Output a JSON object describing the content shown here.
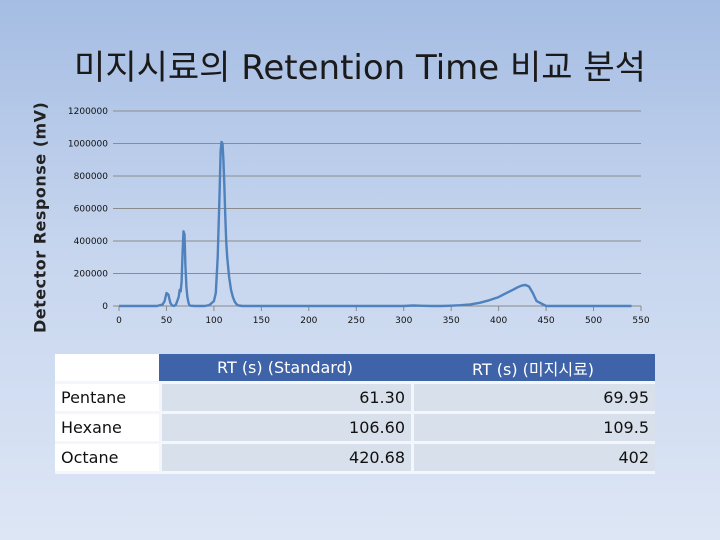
{
  "title": "미지시료의 Retention Time 비교 분석",
  "chart_data": {
    "type": "line",
    "title": "미지시료의 Retention Time 비교 분석",
    "xlabel": "",
    "ylabel": "Detector Response (mV)",
    "xlim": [
      0,
      550
    ],
    "ylim": [
      0,
      1200000
    ],
    "x_ticks": [
      0,
      50,
      100,
      150,
      200,
      250,
      300,
      350,
      400,
      450,
      500,
      550
    ],
    "y_ticks": [
      0,
      200000,
      400000,
      600000,
      800000,
      1000000,
      1200000
    ],
    "grid": "horizontal",
    "line_color": "#4f81bd",
    "series": [
      {
        "x": [
          0,
          20,
          40,
          46,
          48,
          50,
          52,
          54,
          56,
          58,
          60,
          62,
          63,
          64,
          65,
          66,
          67,
          68,
          69,
          70,
          71,
          72,
          73,
          74,
          75,
          80,
          90,
          95,
          100,
          102,
          104,
          106,
          107,
          108,
          109,
          110,
          111,
          112,
          113,
          114,
          116,
          118,
          120,
          122,
          124,
          126,
          130,
          140,
          160,
          200,
          250,
          300,
          310,
          320,
          330,
          340,
          350,
          360,
          370,
          380,
          390,
          400,
          405,
          410,
          415,
          420,
          424,
          428,
          432,
          436,
          440,
          450,
          500,
          520,
          540
        ],
        "y": [
          0,
          0,
          0,
          10000,
          30000,
          80000,
          70000,
          20000,
          3000,
          0,
          8000,
          40000,
          60000,
          100000,
          90000,
          150000,
          330000,
          460000,
          440000,
          250000,
          120000,
          60000,
          25000,
          8000,
          2000,
          0,
          0,
          5000,
          30000,
          80000,
          300000,
          700000,
          950000,
          1010000,
          1000000,
          900000,
          750000,
          550000,
          400000,
          300000,
          180000,
          100000,
          55000,
          25000,
          10000,
          3000,
          0,
          0,
          0,
          0,
          0,
          0,
          3000,
          1000,
          0,
          0,
          2000,
          5000,
          10000,
          20000,
          35000,
          55000,
          70000,
          85000,
          100000,
          115000,
          125000,
          130000,
          120000,
          80000,
          30000,
          0,
          0,
          0,
          0
        ]
      }
    ]
  },
  "table": {
    "headers": [
      "",
      "RT (s) (Standard)",
      "RT (s) (미지시료)"
    ],
    "rows": [
      {
        "name": "Pentane",
        "standard": "61.30",
        "sample": "69.95"
      },
      {
        "name": "Hexane",
        "standard": "106.60",
        "sample": "109.5"
      },
      {
        "name": "Octane",
        "standard": "420.68",
        "sample": "402"
      }
    ]
  }
}
